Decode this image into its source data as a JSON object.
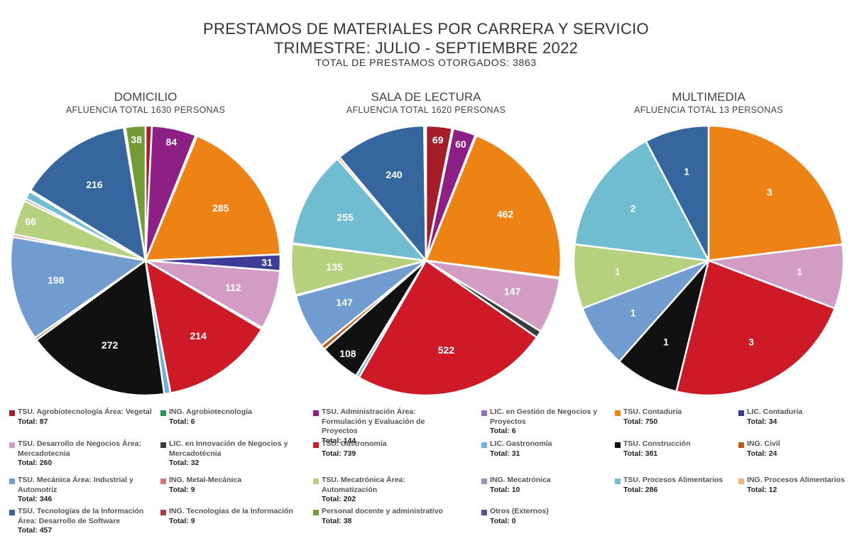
{
  "header": {
    "title": "PRESTAMOS DE MATERIALES POR CARRERA Y SERVICIO",
    "subtitle": "TRIMESTRE: JULIO - SEPTIEMBRE 2022",
    "total": "TOTAL DE PRESTAMOS OTORGADOS: 3863"
  },
  "colors": {
    "agro_vegetal": "#a61d2a",
    "ing_agro": "#1f9a4a",
    "adm_form": "#8e1f84",
    "lic_gestion": "#8c73b8",
    "contaduria": "#ec8314",
    "lic_contaduria": "#3d3d98",
    "des_negocios": "#d39cc2",
    "lic_innovacion": "#3b3b3b",
    "gastronomia": "#cd1a26",
    "lic_gastronomia": "#6fb3e4",
    "construccion": "#111111",
    "ing_civil": "#c05b14",
    "mecanica": "#719ccf",
    "ing_metal": "#db7373",
    "mecatronica": "#b5d17e",
    "ing_mecatronica": "#a38ec4",
    "procesos": "#70bdd1",
    "ing_procesos": "#f4b07e",
    "tecnologias": "#35679e",
    "ing_tecnologias": "#b33a4a",
    "personal": "#749c36",
    "otros": "#5e4b8b"
  },
  "chart_data": [
    {
      "type": "pie",
      "title": "DOMICILIO",
      "subtitle": "AFLUENCIA TOTAL 1630 PERSONAS",
      "slices": [
        {
          "key": "agro_vegetal",
          "value": 12,
          "label": ""
        },
        {
          "key": "adm_form",
          "value": 84,
          "label": "84"
        },
        {
          "key": "lic_gestion",
          "value": 3,
          "label": ""
        },
        {
          "key": "contaduria",
          "value": 285,
          "label": "285"
        },
        {
          "key": "lic_contaduria",
          "value": 31,
          "label": "31"
        },
        {
          "key": "des_negocios",
          "value": 112,
          "label": "112"
        },
        {
          "key": "lic_innovacion",
          "value": 3,
          "label": ""
        },
        {
          "key": "gastronomia",
          "value": 214,
          "label": "214"
        },
        {
          "key": "lic_gastronomia",
          "value": 12,
          "label": ""
        },
        {
          "key": "construccion",
          "value": 272,
          "label": "272"
        },
        {
          "key": "ing_civil",
          "value": 5,
          "label": ""
        },
        {
          "key": "mecanica",
          "value": 198,
          "label": "198"
        },
        {
          "key": "ing_metal",
          "value": 5,
          "label": ""
        },
        {
          "key": "mecatronica",
          "value": 66,
          "label": "66"
        },
        {
          "key": "ing_mecatronica",
          "value": 5,
          "label": ""
        },
        {
          "key": "procesos",
          "value": 15,
          "label": ""
        },
        {
          "key": "ing_procesos",
          "value": 3,
          "label": ""
        },
        {
          "key": "tecnologias",
          "value": 216,
          "label": "216"
        },
        {
          "key": "ing_tecnologias",
          "value": 3,
          "label": ""
        },
        {
          "key": "personal",
          "value": 38,
          "label": "38"
        }
      ]
    },
    {
      "type": "pie",
      "title": "SALA DE LECTURA",
      "subtitle": "AFLUENCIA TOTAL 1620 PERSONAS",
      "slices": [
        {
          "key": "agro_vegetal",
          "value": 69,
          "label": "69"
        },
        {
          "key": "ing_agro",
          "value": 3,
          "label": ""
        },
        {
          "key": "adm_form",
          "value": 60,
          "label": "60"
        },
        {
          "key": "lic_gestion",
          "value": 3,
          "label": ""
        },
        {
          "key": "contaduria",
          "value": 462,
          "label": "462"
        },
        {
          "key": "lic_contaduria",
          "value": 3,
          "label": ""
        },
        {
          "key": "des_negocios",
          "value": 147,
          "label": "147"
        },
        {
          "key": "lic_innovacion",
          "value": 19,
          "label": ""
        },
        {
          "key": "gastronomia",
          "value": 522,
          "label": "522"
        },
        {
          "key": "lic_gastronomia",
          "value": 9,
          "label": ""
        },
        {
          "key": "construccion",
          "value": 108,
          "label": "108"
        },
        {
          "key": "ing_civil",
          "value": 12,
          "label": ""
        },
        {
          "key": "mecanica",
          "value": 147,
          "label": "147"
        },
        {
          "key": "ing_metal",
          "value": 2,
          "label": ""
        },
        {
          "key": "mecatronica",
          "value": 135,
          "label": "135"
        },
        {
          "key": "ing_mecatronica",
          "value": 2,
          "label": ""
        },
        {
          "key": "procesos",
          "value": 255,
          "label": "255"
        },
        {
          "key": "ing_procesos",
          "value": 7,
          "label": ""
        },
        {
          "key": "tecnologias",
          "value": 240,
          "label": "240"
        },
        {
          "key": "ing_tecnologias",
          "value": 5,
          "label": ""
        }
      ]
    },
    {
      "type": "pie",
      "title": "MULTIMEDIA",
      "subtitle": "AFLUENCIA TOTAL 13 PERSONAS",
      "slices": [
        {
          "key": "contaduria",
          "value": 3,
          "label": "3"
        },
        {
          "key": "des_negocios",
          "value": 1,
          "label": "1"
        },
        {
          "key": "gastronomia",
          "value": 3,
          "label": "3"
        },
        {
          "key": "construccion",
          "value": 1,
          "label": "1"
        },
        {
          "key": "mecanica",
          "value": 1,
          "label": "1"
        },
        {
          "key": "mecatronica",
          "value": 1,
          "label": "1"
        },
        {
          "key": "procesos",
          "value": 2,
          "label": "2"
        },
        {
          "key": "tecnologias",
          "value": 1,
          "label": "1"
        }
      ]
    }
  ],
  "legend": [
    {
      "key": "agro_vegetal",
      "label": "TSU.  Agrobiotecnología Área: Vegetal",
      "total": "Total: 87"
    },
    {
      "key": "ing_agro",
      "label": "ING. Agrobiotecnología",
      "total": "Total: 6"
    },
    {
      "key": "adm_form",
      "label": "TSU. Administración Área: Formulación y Evaluación de Proyectos",
      "total": "Total: 144"
    },
    {
      "key": "lic_gestion",
      "label": "LIC. en Gestión de Negocios y Proyectos",
      "total": "Total: 6"
    },
    {
      "key": "contaduria",
      "label": "TSU. Contaduría",
      "total": "Total: 750"
    },
    {
      "key": "lic_contaduria",
      "label": "LIC. Contaduría",
      "total": "Total: 34"
    },
    {
      "key": "des_negocios",
      "label": "TSU. Desarrollo de Negocios Área: Mercadotecnia",
      "total": "Total: 260"
    },
    {
      "key": "lic_innovacion",
      "label": "LIC. en Innovación de Negocios y Mercadotécnia",
      "total": "Total: 32"
    },
    {
      "key": "gastronomia",
      "label": "TSU. Gastronomía",
      "total": "Total: 739"
    },
    {
      "key": "lic_gastronomia",
      "label": "LIC. Gastronomía",
      "total": "Total: 31"
    },
    {
      "key": "construccion",
      "label": "TSU. Construcción",
      "total": "Total: 381"
    },
    {
      "key": "ing_civil",
      "label": "ING. Civil",
      "total": "Total: 24"
    },
    {
      "key": "mecanica",
      "label": "TSU. Mecánica Área: Industrial y Automotriz",
      "total": "Total: 346"
    },
    {
      "key": "ing_metal",
      "label": "ING. Metal-Mecánica",
      "total": "Total: 9"
    },
    {
      "key": "mecatronica",
      "label": "TSU. Mecatrónica Área: Automatización",
      "total": "Total: 202"
    },
    {
      "key": "ing_mecatronica",
      "label": "ING. Mecatrónica",
      "total": "Total:  10"
    },
    {
      "key": "procesos",
      "label": "TSU. Procesos Alimentarios",
      "total": "Total: 286"
    },
    {
      "key": "ing_procesos",
      "label": "ING. Procesos Alimentarios",
      "total": "Total: 12"
    },
    {
      "key": "tecnologias",
      "label": "TSU. Tecnologías de la Información Área: Desarrollo de Software",
      "total": "Total: 457"
    },
    {
      "key": "ing_tecnologias",
      "label": "ING. Tecnologías de la Información",
      "total": "Total: 9"
    },
    {
      "key": "personal",
      "label": "Personal docente y administrativo",
      "total": "Total: 38"
    },
    {
      "key": "otros",
      "label": "Otros (Externos)",
      "total": "Total: 0"
    }
  ]
}
